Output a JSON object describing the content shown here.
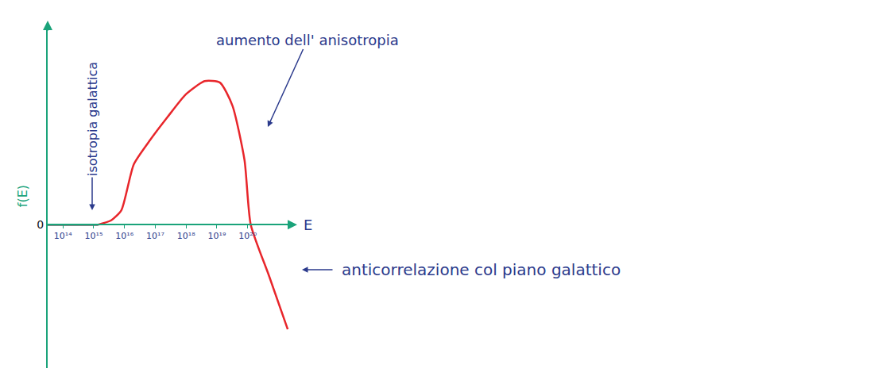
{
  "chart_data": {
    "type": "line",
    "xlabel": "E",
    "ylabel": "f(E)",
    "log": "x",
    "grid": false,
    "xlim": [
      32000000000000.0,
      3.2e+21
    ],
    "xticks": [
      {
        "value": 100000000000000.0,
        "label": "10¹⁴"
      },
      {
        "value": 1000000000000000.0,
        "label": "10¹⁵"
      },
      {
        "value": 1e+16,
        "label": "10¹⁶"
      },
      {
        "value": 1e+17,
        "label": "10¹⁷"
      },
      {
        "value": 1e+18,
        "label": "10¹⁸"
      },
      {
        "value": 1e+19,
        "label": "10¹⁹"
      },
      {
        "value": 1e+20,
        "label": "10²⁰"
      }
    ],
    "ylim": [
      -1.0,
      1.4
    ],
    "yticks": [
      0
    ],
    "x": [
      32000000000000.0,
      100000000000000.0,
      1000000000000000.0,
      1400000000000000.0,
      3700000000000000.0,
      7900000000000000.0,
      2e+16,
      6.3e+16,
      2.5e+17,
      1e+18,
      4e+18,
      1.26e+19,
      3.2e+19,
      7.9e+19,
      1.26e+20,
      5e+20,
      2e+21
    ],
    "series": [
      {
        "color": "#111111",
        "values": [
          0,
          0,
          0,
          0,
          null,
          null,
          null,
          null,
          null,
          null,
          null,
          null,
          null,
          null,
          null,
          null,
          null
        ]
      },
      {
        "color": "#e8262b",
        "values": [
          null,
          null,
          null,
          0,
          0.03,
          0.1,
          0.42,
          0.58,
          0.75,
          0.91,
          1.0,
          0.99,
          0.83,
          0.45,
          0,
          -0.36,
          -0.73
        ]
      }
    ],
    "annotations": [
      {
        "text": "isotropia galattica"
      },
      {
        "text": "aumento dell' anisotropia"
      },
      {
        "text": "anticorrelazione col piano galattico"
      }
    ]
  }
}
